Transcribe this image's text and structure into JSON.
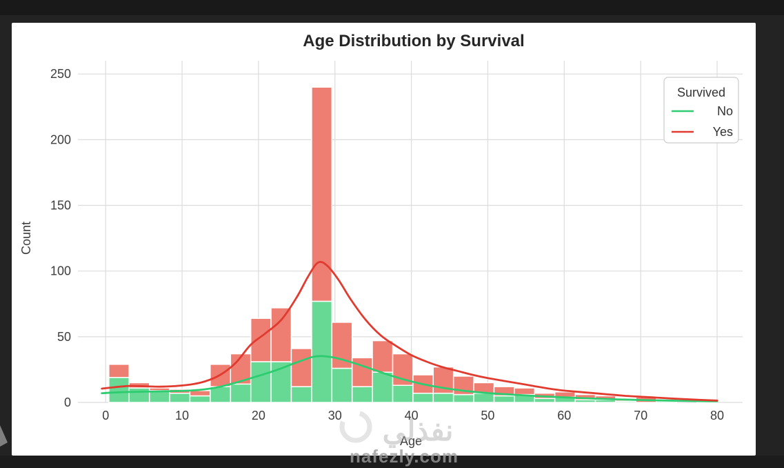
{
  "page": {
    "background": "#232323",
    "top_strip_color": "#191919",
    "footer_color": "#1c1c1c",
    "card_color": "#ffffff"
  },
  "watermark": {
    "arabic": "نفذلي",
    "domain": "nafezly.com"
  },
  "chart_data": {
    "type": "bar",
    "subtype": "stacked-histogram-with-kde",
    "title": "Age Distribution by Survival",
    "xlabel": "Age",
    "ylabel": "Count",
    "x_ticks": [
      0,
      10,
      20,
      30,
      40,
      50,
      60,
      70,
      80
    ],
    "y_ticks": [
      0,
      50,
      100,
      150,
      200,
      250
    ],
    "xlim": [
      -3.6,
      83.3
    ],
    "ylim": [
      0,
      260
    ],
    "grid": true,
    "bin_edges": [
      0.42,
      3.07,
      5.73,
      8.38,
      11.03,
      13.68,
      16.34,
      18.99,
      21.64,
      24.29,
      26.95,
      29.6,
      32.25,
      34.9,
      37.56,
      40.21,
      42.86,
      45.51,
      48.17,
      50.82,
      53.47,
      56.12,
      58.77,
      61.43,
      64.08,
      66.73,
      69.38,
      72.04,
      74.69,
      77.34,
      79.99
    ],
    "stack_order_bottom_to_top": [
      "No",
      "Yes"
    ],
    "series": [
      {
        "name": "No",
        "values": [
          19,
          11,
          9,
          7,
          5,
          12,
          14,
          31,
          31,
          12,
          77,
          26,
          12,
          23,
          13,
          7,
          7,
          6,
          7,
          5,
          6,
          3,
          4,
          2,
          2,
          1,
          0,
          1,
          0,
          0
        ]
      },
      {
        "name": "Yes",
        "values": [
          10,
          4,
          2,
          3,
          4,
          17,
          23,
          33,
          41,
          29,
          163,
          35,
          22,
          24,
          24,
          14,
          20,
          14,
          8,
          7,
          5,
          4,
          4,
          4,
          3,
          2,
          4,
          0,
          0,
          1
        ]
      }
    ],
    "kde": {
      "No": [
        [
          -0.5,
          7
        ],
        [
          2,
          7.8
        ],
        [
          5,
          8.2
        ],
        [
          8,
          8.5
        ],
        [
          11,
          9
        ],
        [
          13,
          10
        ],
        [
          15,
          12
        ],
        [
          17,
          15
        ],
        [
          19,
          18.5
        ],
        [
          21,
          22
        ],
        [
          23,
          26
        ],
        [
          25,
          30.5
        ],
        [
          27,
          34.5
        ],
        [
          28.2,
          35.3
        ],
        [
          29.5,
          34.5
        ],
        [
          31,
          32.5
        ],
        [
          33,
          29
        ],
        [
          35,
          25
        ],
        [
          37,
          21
        ],
        [
          39,
          17.5
        ],
        [
          41,
          14.5
        ],
        [
          43,
          12.2
        ],
        [
          45,
          10.3
        ],
        [
          47,
          8.8
        ],
        [
          49,
          7.6
        ],
        [
          51,
          6.7
        ],
        [
          53,
          6
        ],
        [
          55,
          5.3
        ],
        [
          57,
          4.7
        ],
        [
          59,
          4.1
        ],
        [
          61,
          3.6
        ],
        [
          63,
          3.1
        ],
        [
          65,
          2.7
        ],
        [
          67,
          2.3
        ],
        [
          69,
          2
        ],
        [
          71,
          1.7
        ],
        [
          73,
          1.5
        ],
        [
          75,
          1.25
        ],
        [
          77,
          1.05
        ],
        [
          79,
          0.9
        ],
        [
          80,
          0.85
        ]
      ],
      "Yes": [
        [
          -0.5,
          10.5
        ],
        [
          1,
          11.5
        ],
        [
          3,
          12.5
        ],
        [
          5,
          12.3
        ],
        [
          7,
          12
        ],
        [
          9,
          12.4
        ],
        [
          11,
          13.5
        ],
        [
          13,
          16
        ],
        [
          15,
          21
        ],
        [
          17,
          30
        ],
        [
          19,
          44
        ],
        [
          21,
          53
        ],
        [
          23,
          63
        ],
        [
          25,
          80
        ],
        [
          26.5,
          96
        ],
        [
          27.8,
          106.5
        ],
        [
          29,
          104
        ],
        [
          30.5,
          93
        ],
        [
          32,
          79
        ],
        [
          34,
          63
        ],
        [
          36,
          51
        ],
        [
          38,
          43
        ],
        [
          40,
          36
        ],
        [
          42,
          31
        ],
        [
          44,
          27
        ],
        [
          46,
          24
        ],
        [
          48,
          21
        ],
        [
          50,
          18.5
        ],
        [
          52,
          16.5
        ],
        [
          54,
          14.5
        ],
        [
          56,
          12.5
        ],
        [
          58,
          10.5
        ],
        [
          60,
          9
        ],
        [
          62,
          8
        ],
        [
          64,
          7
        ],
        [
          66,
          6
        ],
        [
          68,
          5
        ],
        [
          70,
          4.3
        ],
        [
          72,
          3.7
        ],
        [
          74,
          3
        ],
        [
          76,
          2.4
        ],
        [
          78,
          1.9
        ],
        [
          80,
          1.4
        ]
      ]
    },
    "legend": {
      "title": "Survived",
      "position": "upper right",
      "entries": [
        {
          "label": "No",
          "color": "#2ecc71"
        },
        {
          "label": "Yes",
          "color": "#e13b30"
        }
      ]
    },
    "colors": {
      "bar_no": "#68d995",
      "bar_yes": "#ee7d72",
      "line_no": "#2ecc71",
      "line_yes": "#e13b30",
      "grid": "#dcdcdc",
      "bar_edge": "#ffffff"
    }
  }
}
